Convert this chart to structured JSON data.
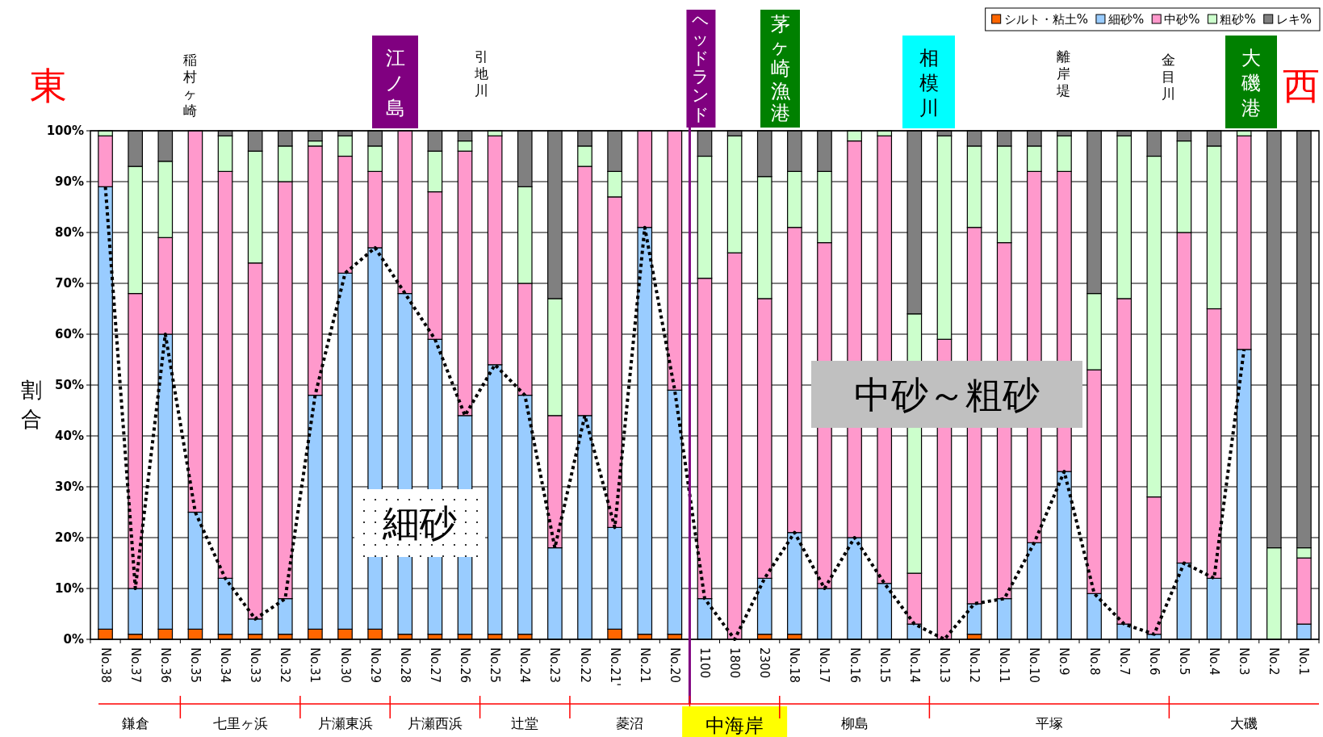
{
  "chart_data": {
    "type": "bar",
    "stacked": true,
    "ylabel": "割合",
    "categories": [
      "No.38",
      "No.37",
      "No.36",
      "No.35",
      "No.34",
      "No.33",
      "No.32",
      "No.31",
      "No.30",
      "No.29",
      "No.28",
      "No.27",
      "No.26",
      "No.25",
      "No.24",
      "No.23",
      "No.22",
      "No.21'",
      "No.21",
      "No.20",
      "1100",
      "1800",
      "2300",
      "No.18",
      "No.17",
      "No.16",
      "No.15",
      "No.14",
      "No.13",
      "No.12",
      "No.11",
      "No.10",
      "No.9",
      "No.8",
      "No.7",
      "No.6",
      "No.5",
      "No.4",
      "No.3",
      "No.2",
      "No.1"
    ],
    "series": [
      {
        "name": "シルト・粘土%",
        "color": "#ff6600",
        "values": [
          2,
          1,
          2,
          2,
          1,
          1,
          1,
          2,
          2,
          2,
          1,
          1,
          1,
          1,
          1,
          0,
          0,
          2,
          1,
          1,
          0,
          0,
          1,
          1,
          0,
          0,
          0,
          0,
          0,
          1,
          0,
          0,
          0,
          0,
          0,
          0,
          0,
          0,
          0,
          0,
          0
        ]
      },
      {
        "name": "細砂%",
        "color": "#99ccff",
        "values": [
          87,
          9,
          58,
          23,
          11,
          3,
          7,
          46,
          70,
          75,
          67,
          58,
          43,
          53,
          47,
          18,
          44,
          20,
          80,
          48,
          8,
          0,
          11,
          20,
          10,
          20,
          11,
          3,
          0,
          6,
          8,
          19,
          33,
          9,
          3,
          1,
          15,
          12,
          57,
          0,
          3
        ]
      },
      {
        "name": "中砂%",
        "color": "#ff99cc",
        "values": [
          10,
          58,
          19,
          75,
          80,
          70,
          82,
          49,
          23,
          15,
          32,
          29,
          52,
          45,
          22,
          26,
          49,
          65,
          19,
          51,
          63,
          76,
          55,
          60,
          68,
          78,
          88,
          10,
          59,
          74,
          70,
          73,
          59,
          44,
          64,
          27,
          65,
          53,
          42,
          0,
          13
        ]
      },
      {
        "name": "粗砂%",
        "color": "#ccffcc",
        "values": [
          1,
          25,
          15,
          0,
          7,
          22,
          7,
          1,
          4,
          5,
          0,
          8,
          2,
          1,
          19,
          23,
          4,
          5,
          0,
          0,
          24,
          23,
          24,
          11,
          14,
          2,
          1,
          51,
          40,
          16,
          19,
          5,
          7,
          15,
          32,
          67,
          18,
          32,
          1,
          18,
          2
        ]
      },
      {
        "name": "レキ%",
        "color": "#808080",
        "values": [
          0,
          7,
          6,
          0,
          1,
          4,
          3,
          2,
          1,
          3,
          0,
          4,
          2,
          0,
          11,
          33,
          3,
          8,
          0,
          0,
          5,
          1,
          9,
          8,
          8,
          0,
          0,
          36,
          1,
          3,
          3,
          3,
          1,
          32,
          1,
          5,
          2,
          3,
          0,
          82,
          82
        ]
      },
      {
        "type": "line",
        "color": "#000000",
        "line_style": "dotted",
        "values": [
          89,
          10,
          60,
          25,
          12,
          4,
          8,
          48,
          72,
          77,
          68,
          59,
          44,
          54,
          48,
          18,
          44,
          22,
          81,
          49,
          8,
          0,
          12,
          21,
          10,
          20,
          11,
          3,
          0,
          7,
          8,
          19,
          33,
          9,
          3,
          1,
          15,
          12,
          57,
          null,
          null
        ]
      }
    ],
    "ylim": [
      0,
      100
    ],
    "yticks": [
      {
        "value": 0,
        "label": "0%"
      },
      {
        "value": 10,
        "label": "10%"
      },
      {
        "value": 20,
        "label": "20%"
      },
      {
        "value": 30,
        "label": "30%"
      },
      {
        "value": 40,
        "label": "40%"
      },
      {
        "value": 50,
        "label": "50%"
      },
      {
        "value": 60,
        "label": "60%"
      },
      {
        "value": 70,
        "label": "70%"
      },
      {
        "value": 80,
        "label": "80%"
      },
      {
        "value": 90,
        "label": "90%"
      },
      {
        "value": 100,
        "label": "100%"
      }
    ],
    "grid": "y",
    "legend": "top right",
    "marker": "none",
    "annotations": [
      "東",
      "稲村ヶ崎",
      "江ノ島",
      "引地川",
      "ヘッドランド",
      "茅ヶ崎漁港",
      "相模川",
      "離岸堤",
      "金目川",
      "大磯港",
      "西",
      "細砂",
      "中砂～粗砂",
      "鎌倉",
      "七里ヶ浜",
      "片瀬東浜",
      "片瀬西浜",
      "辻堂",
      "菱沼",
      "中海岸",
      "柳島",
      "平塚",
      "大磯"
    ]
  }
}
